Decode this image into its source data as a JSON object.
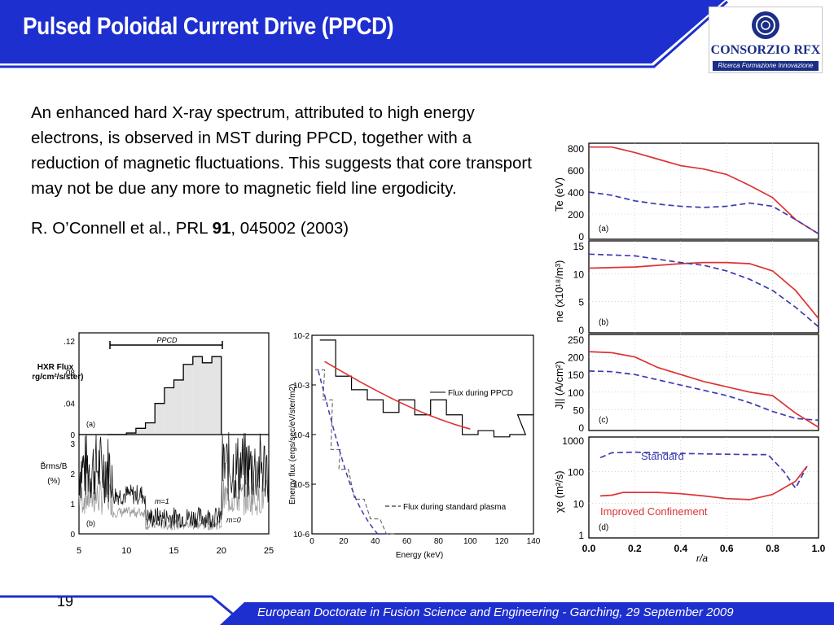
{
  "slide": {
    "title": "Pulsed Poloidal Current Drive (PPCD)",
    "page_number": "19",
    "footer": "European Doctorate in Fusion Science and Engineering  -  Garching, 29 September 2009"
  },
  "logo": {
    "name": "CONSORZIO RFX",
    "tagline": "Ricerca Formazione Innovazione"
  },
  "body": {
    "paragraph": "An enhanced hard X-ray spectrum, attributed to high energy electrons, is observed in MST during PPCD, together with a reduction of magnetic fluctuations. This suggests that core transport may not be due any more to magnetic field line ergodicity.",
    "reference_prefix": "R. O’Connell et al., PRL ",
    "reference_volume": "91",
    "reference_suffix": ", 045002 (2003)"
  },
  "colors": {
    "header_blue": "#1e2fcf",
    "footer_blue": "#1e2fcf",
    "red": "#dd3333",
    "blue_dashed": "#3c3cb0"
  },
  "figures": {
    "hxr": {
      "ylabel_top_1": "HXR Flux",
      "ylabel_top_2": "erg/cm²/s/ster)",
      "ylabel_bottom_1": "B̃rms/B",
      "ylabel_bottom_2": "(%)",
      "ppcd_label": "PPCD",
      "panel_a": "(a)",
      "panel_b": "(b)",
      "m1": "m=1",
      "m0": "m=0",
      "yticks_top": [
        ".12",
        ".08",
        ".04",
        "0"
      ],
      "yticks_bottom": [
        "3",
        "2",
        "1",
        "0"
      ],
      "xticks": [
        "5",
        "10",
        "15",
        "20",
        "25"
      ]
    },
    "spectrum": {
      "ylabel": "Energy flux (ergs/sec/eV/ster/m2)",
      "xlabel": "Energy (keV)",
      "legend_ppcd": "Flux during PPCD",
      "legend_standard": "Flux during standard plasma",
      "yticks": [
        "10-2",
        "10-3",
        "10-4",
        "10-5",
        "10-6"
      ],
      "xticks": [
        "0",
        "20",
        "40",
        "60",
        "80",
        "100",
        "120",
        "140"
      ]
    },
    "profiles": {
      "panel_a": "(a)",
      "panel_b": "(b)",
      "panel_c": "(c)",
      "panel_d": "(d)",
      "ylabel_a": "Te (eV)",
      "ylabel_b": "ne (x10¹⁸/m³)",
      "ylabel_c": "J|| (A/cm²)",
      "ylabel_d": "χe (m²/s)",
      "standard_label": "Standard",
      "improved_label": "Improved Confinement",
      "xlabel": "r/a",
      "yticks_a": [
        "800",
        "600",
        "400",
        "200",
        "0"
      ],
      "yticks_b": [
        "15",
        "10",
        "5",
        "0"
      ],
      "yticks_c": [
        "250",
        "200",
        "150",
        "100",
        "50",
        "0"
      ],
      "yticks_d": [
        "1000",
        "100",
        "10",
        "1"
      ],
      "xticks": [
        "0.0",
        "0.2",
        "0.4",
        "0.6",
        "0.8",
        "1.0"
      ]
    }
  },
  "chart_data": [
    {
      "type": "line",
      "title": "",
      "xlabel": "",
      "ylabel": "HXR Flux erg/cm²/s/ster)",
      "xlim": [
        5,
        25
      ],
      "ylim": [
        0,
        0.12
      ],
      "series": [
        {
          "name": "",
          "x": [
            8,
            10,
            11,
            12,
            13,
            14,
            15,
            16,
            17,
            18,
            19,
            20
          ],
          "values": [
            0,
            0.002,
            0.008,
            0.015,
            0.04,
            0.06,
            0.07,
            0.09,
            0.1,
            0.092,
            0.1,
            0.0
          ]
        }
      ]
    },
    {
      "type": "line",
      "xlabel": "Energy (keV)",
      "ylabel": "Energy flux (ergs/sec/eV/ster/m2)",
      "xlim": [
        0,
        140
      ],
      "ylim": [
        1e-06,
        0.01
      ],
      "yscale": "log",
      "series": [
        {
          "name": "Flux during PPCD",
          "x": [
            10,
            20,
            30,
            40,
            50,
            60,
            70,
            80,
            90,
            100,
            110,
            120,
            130,
            135
          ],
          "values": [
            0.008,
            0.0015,
            0.0008,
            0.0005,
            0.00028,
            0.0005,
            0.00025,
            0.0005,
            0.00025,
            0.0001,
            0.00012,
            9e-05,
            0.0001,
            0.00025
          ]
        },
        {
          "name": "Flux during standard plasma",
          "x": [
            5,
            10,
            15,
            20,
            30,
            40,
            50
          ],
          "values": [
            0.002,
            0.0005,
            5e-05,
            2e-05,
            5e-06,
            2e-06,
            1e-06
          ]
        }
      ]
    },
    {
      "type": "line",
      "xlabel": "r/a",
      "ylabel": "Te (eV)",
      "xlim": [
        0,
        1
      ],
      "ylim": [
        0,
        800
      ],
      "series": [
        {
          "name": "Improved Confinement",
          "x": [
            0,
            0.1,
            0.2,
            0.3,
            0.4,
            0.5,
            0.6,
            0.7,
            0.8,
            0.9,
            1.0
          ],
          "values": [
            810,
            810,
            760,
            700,
            640,
            610,
            560,
            460,
            350,
            150,
            20
          ]
        },
        {
          "name": "Standard",
          "x": [
            0,
            0.1,
            0.2,
            0.3,
            0.4,
            0.5,
            0.6,
            0.7,
            0.8,
            0.9,
            1.0
          ],
          "values": [
            400,
            370,
            320,
            290,
            270,
            260,
            270,
            300,
            270,
            150,
            20
          ]
        }
      ]
    },
    {
      "type": "line",
      "xlabel": "r/a",
      "ylabel": "ne (x10¹⁸/m³)",
      "xlim": [
        0,
        1
      ],
      "ylim": [
        0,
        15
      ],
      "series": [
        {
          "name": "Improved Confinement",
          "x": [
            0,
            0.2,
            0.4,
            0.5,
            0.6,
            0.7,
            0.8,
            0.9,
            1.0
          ],
          "values": [
            11,
            11.2,
            11.8,
            12,
            12,
            11.8,
            10.5,
            7,
            2
          ]
        },
        {
          "name": "Standard",
          "x": [
            0,
            0.2,
            0.4,
            0.5,
            0.6,
            0.7,
            0.8,
            0.9,
            1.0
          ],
          "values": [
            13.5,
            13.2,
            12,
            11.5,
            10.5,
            9,
            7,
            4,
            0.5
          ]
        }
      ]
    },
    {
      "type": "line",
      "xlabel": "r/a",
      "ylabel": "J|| (A/cm²)",
      "xlim": [
        0,
        1
      ],
      "ylim": [
        0,
        250
      ],
      "series": [
        {
          "name": "Improved Confinement",
          "x": [
            0,
            0.1,
            0.2,
            0.3,
            0.4,
            0.5,
            0.6,
            0.7,
            0.8,
            0.9,
            1.0
          ],
          "values": [
            215,
            212,
            200,
            170,
            150,
            130,
            115,
            100,
            90,
            40,
            0
          ]
        },
        {
          "name": "Standard",
          "x": [
            0,
            0.1,
            0.2,
            0.3,
            0.4,
            0.5,
            0.6,
            0.7,
            0.8,
            0.9,
            1.0
          ],
          "values": [
            160,
            158,
            150,
            135,
            120,
            105,
            90,
            70,
            45,
            25,
            20
          ]
        }
      ]
    },
    {
      "type": "line",
      "xlabel": "r/a",
      "ylabel": "χe (m²/s)",
      "xlim": [
        0,
        1
      ],
      "ylim": [
        1,
        1000
      ],
      "yscale": "log",
      "series": [
        {
          "name": "Standard",
          "x": [
            0.05,
            0.1,
            0.2,
            0.3,
            0.4,
            0.5,
            0.6,
            0.7,
            0.78,
            0.85,
            0.9,
            0.95
          ],
          "values": [
            280,
            400,
            420,
            400,
            380,
            370,
            360,
            350,
            350,
            100,
            30,
            150
          ]
        },
        {
          "name": "Improved Confinement",
          "x": [
            0.05,
            0.1,
            0.15,
            0.2,
            0.3,
            0.4,
            0.5,
            0.6,
            0.7,
            0.8,
            0.9,
            0.95
          ],
          "values": [
            17,
            18,
            22,
            22,
            22,
            20,
            17,
            14,
            13,
            19,
            50,
            150
          ]
        }
      ]
    }
  ]
}
